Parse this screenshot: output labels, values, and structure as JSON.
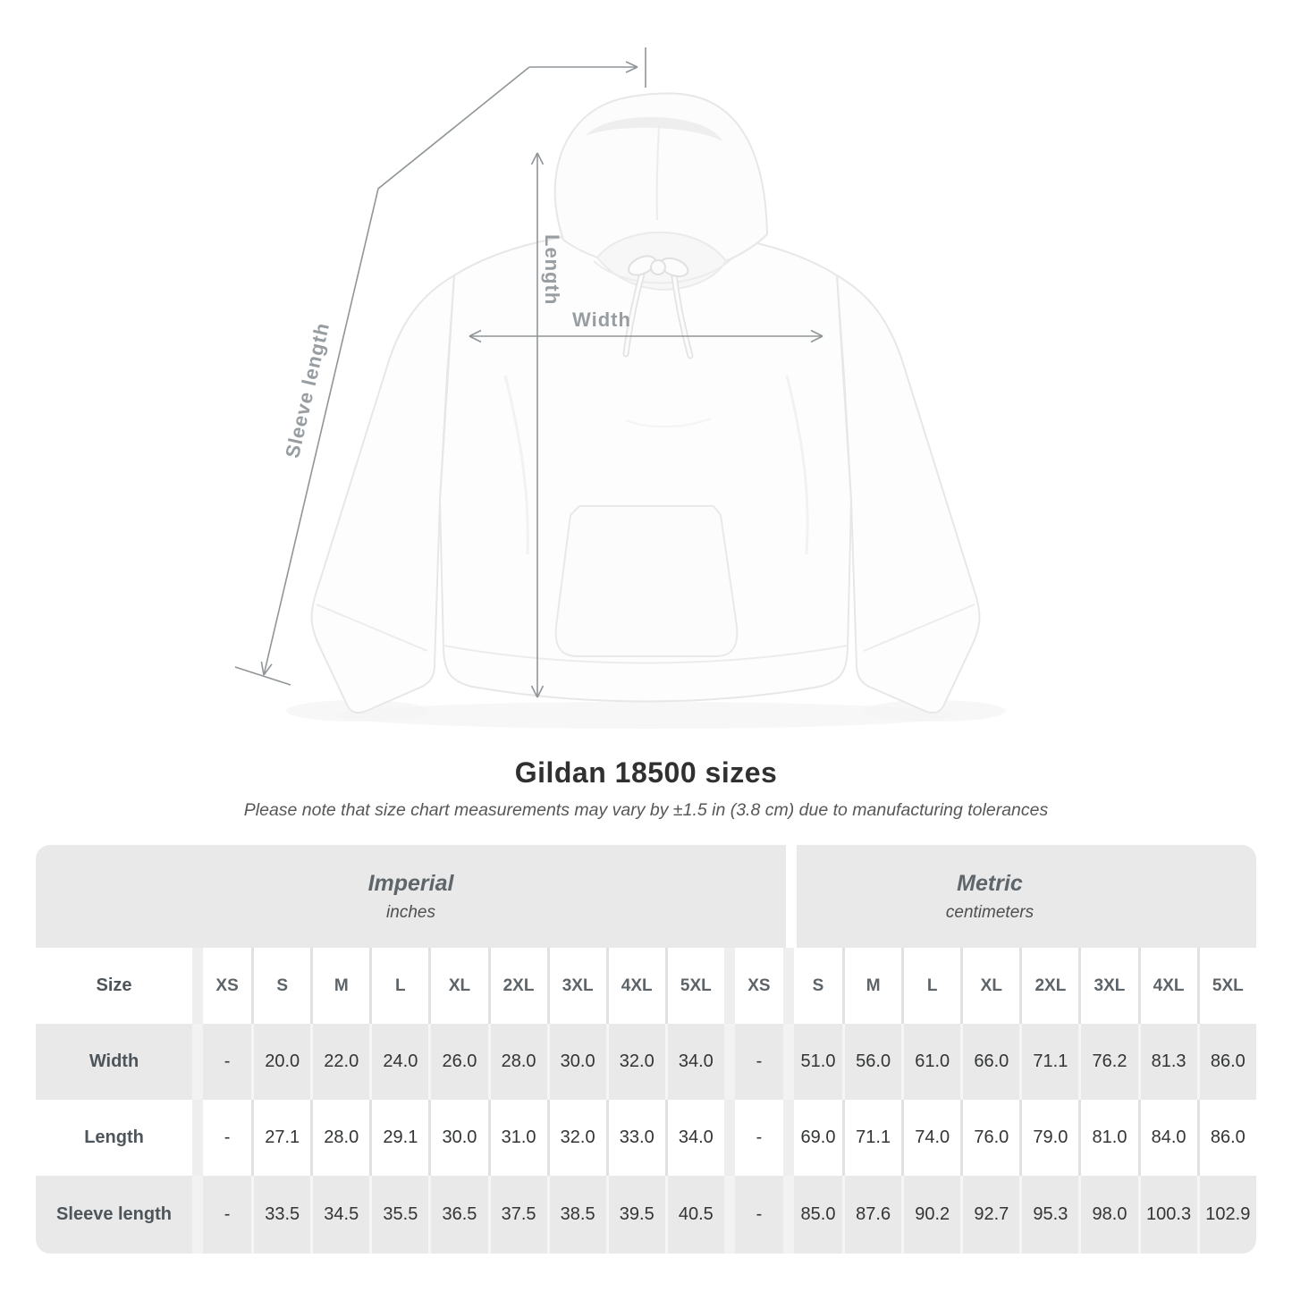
{
  "page": {
    "title": "Gildan 18500 sizes",
    "subtitle": "Please note that size chart measurements may vary by ±1.5 in (3.8 cm) due to manufacturing tolerances"
  },
  "diagram": {
    "length_label": "Length",
    "width_label": "Width",
    "sleeve_label": "Sleeve length",
    "line_color": "#8f9598",
    "label_color": "#979da1"
  },
  "table": {
    "imperial": {
      "title": "Imperial",
      "subtitle": "inches"
    },
    "metric": {
      "title": "Metric",
      "subtitle": "centimeters"
    },
    "size_header": "Size",
    "sizes": [
      "XS",
      "S",
      "M",
      "L",
      "XL",
      "2XL",
      "3XL",
      "4XL",
      "5XL"
    ],
    "rows": [
      {
        "label": "Width",
        "imperial": [
          "-",
          "20.0",
          "22.0",
          "24.0",
          "26.0",
          "28.0",
          "30.0",
          "32.0",
          "34.0"
        ],
        "metric": [
          "-",
          "51.0",
          "56.0",
          "61.0",
          "66.0",
          "71.1",
          "76.2",
          "81.3",
          "86.0"
        ]
      },
      {
        "label": "Length",
        "imperial": [
          "-",
          "27.1",
          "28.0",
          "29.1",
          "30.0",
          "31.0",
          "32.0",
          "33.0",
          "34.0"
        ],
        "metric": [
          "-",
          "69.0",
          "71.1",
          "74.0",
          "76.0",
          "79.0",
          "81.0",
          "84.0",
          "86.0"
        ]
      },
      {
        "label": "Sleeve length",
        "imperial": [
          "-",
          "33.5",
          "34.5",
          "35.5",
          "36.5",
          "37.5",
          "38.5",
          "39.5",
          "40.5"
        ],
        "metric": [
          "-",
          "85.0",
          "87.6",
          "90.2",
          "92.7",
          "95.3",
          "98.0",
          "100.3",
          "102.9"
        ]
      }
    ],
    "gray_row_color": "#e9e9e9",
    "empty_value": "-"
  }
}
